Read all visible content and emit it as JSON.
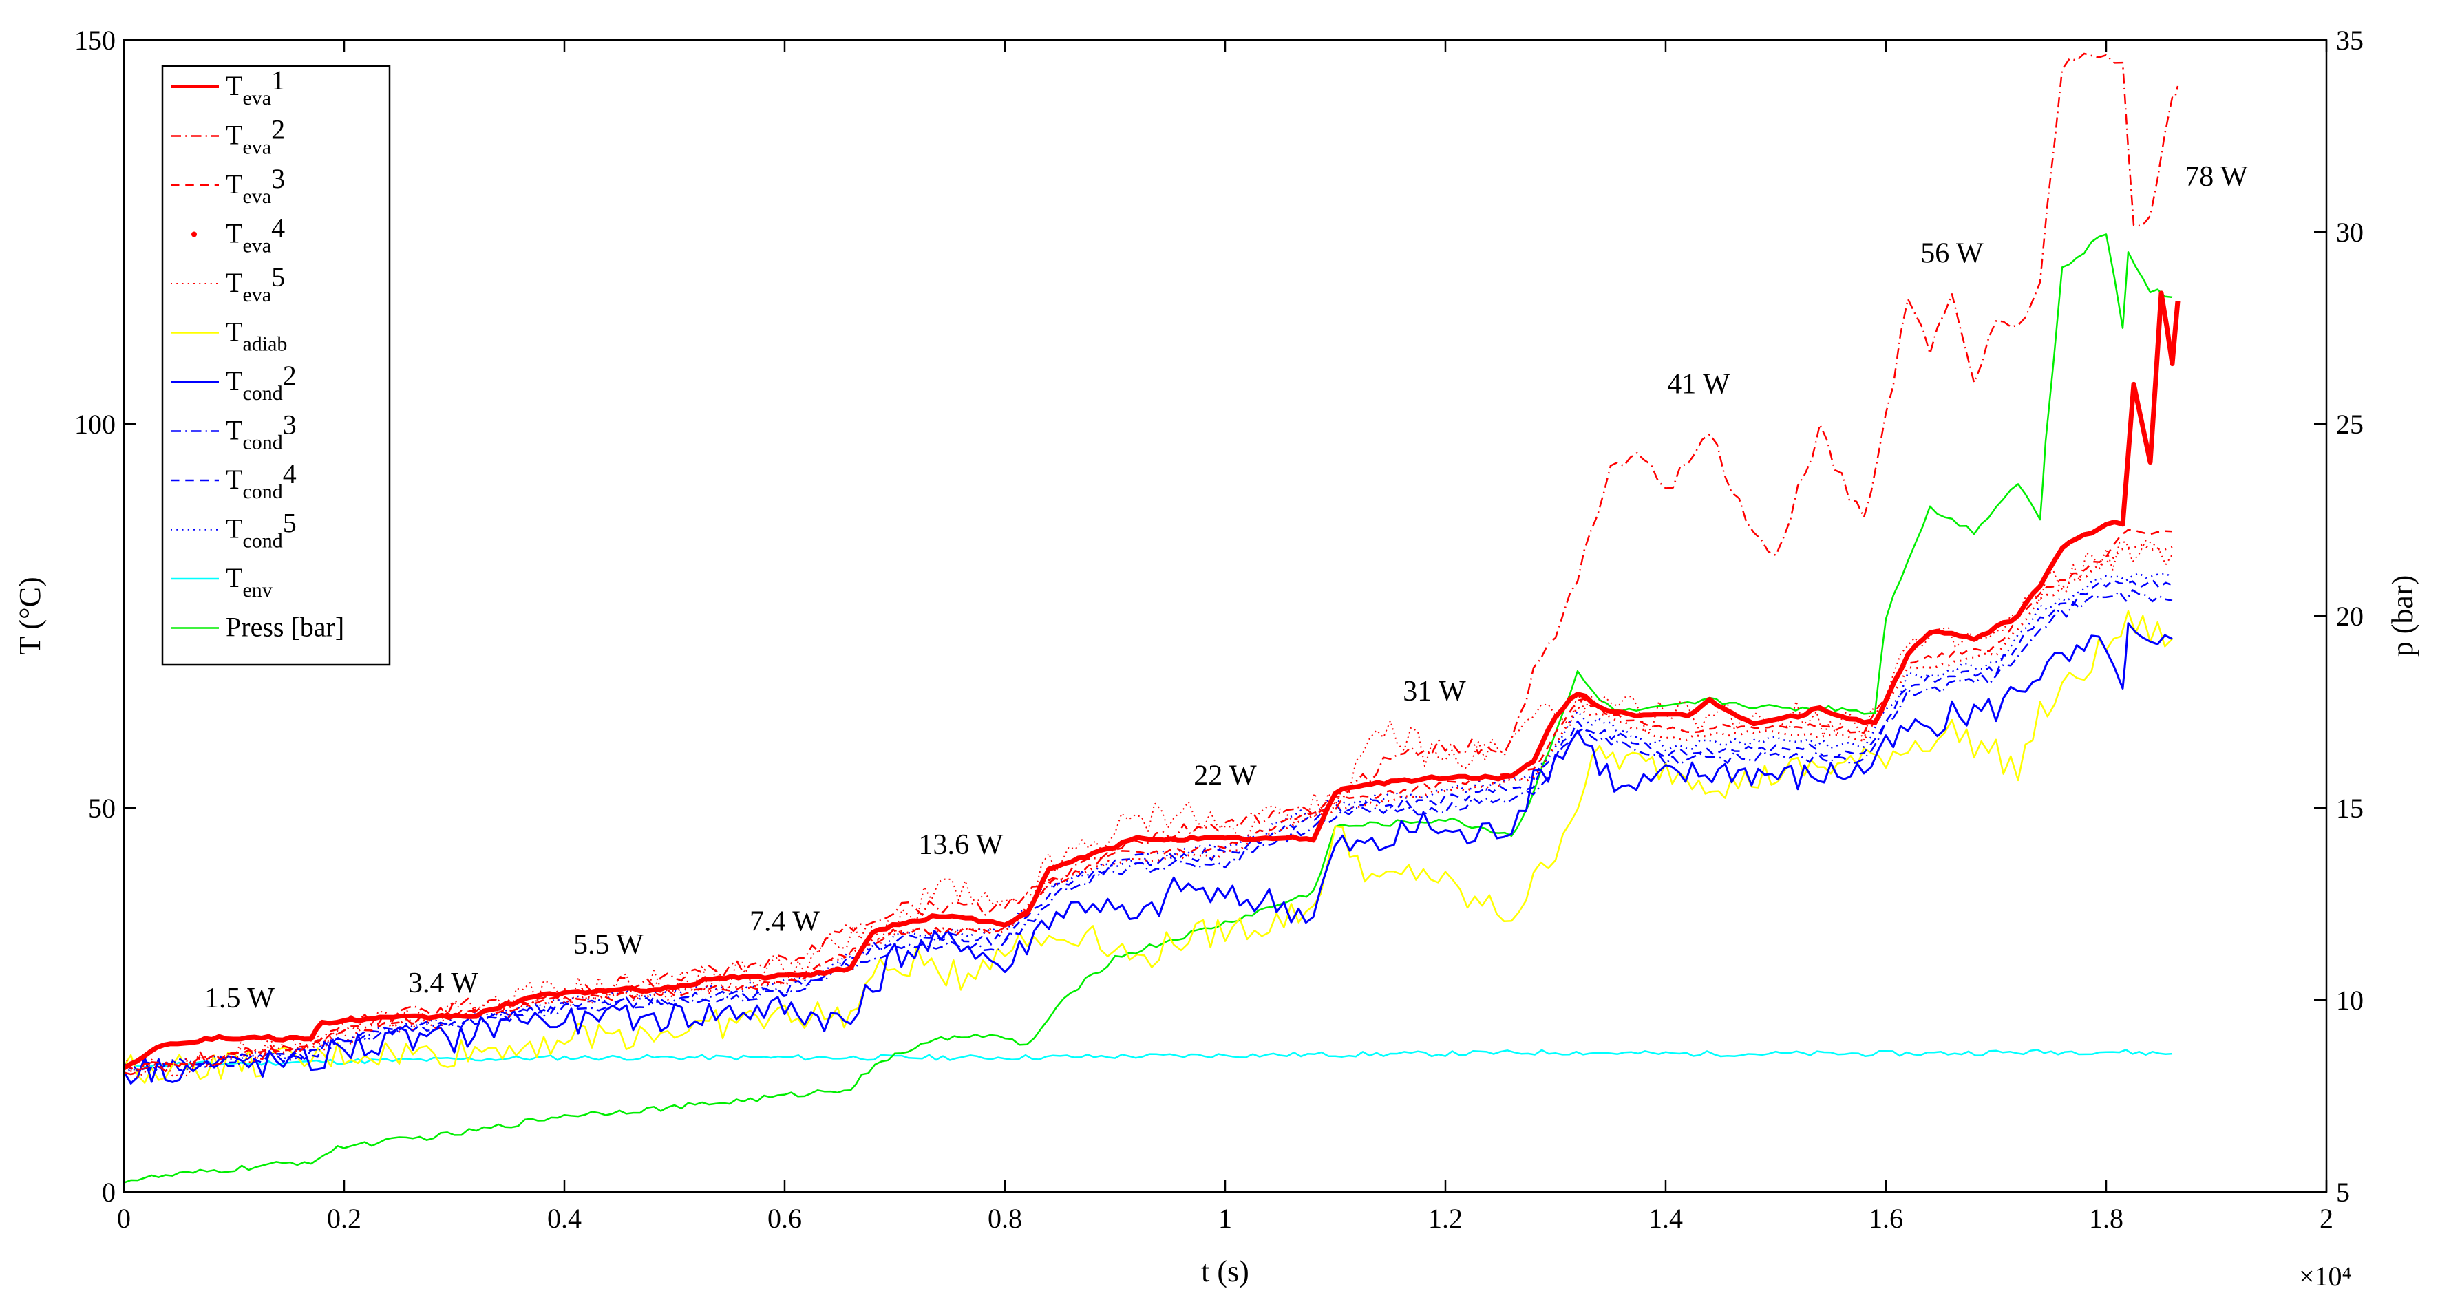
{
  "chart_data": {
    "type": "line",
    "title": "",
    "xlabel": "t (s)",
    "ylabel_left": "T (°C)",
    "ylabel_right": "p (bar)",
    "x_multiplier": "×10⁴",
    "xlim": [
      0,
      2
    ],
    "ylim_left": [
      0,
      150
    ],
    "ylim_right": [
      5,
      35
    ],
    "x_ticks": [
      "0",
      "0.2",
      "0.4",
      "0.6",
      "0.8",
      "1",
      "1.2",
      "1.4",
      "1.6",
      "1.8",
      "2"
    ],
    "y_ticks_left": [
      "0",
      "50",
      "100",
      "150"
    ],
    "y_ticks_right": [
      "5",
      "10",
      "15",
      "20",
      "25",
      "30",
      "35"
    ],
    "grid": false,
    "legend_position": "top-left",
    "annotations": [
      {
        "text": "1.5 W",
        "x": 0.105,
        "y": 24
      },
      {
        "text": "3.4 W",
        "x": 0.29,
        "y": 26
      },
      {
        "text": "5.5 W",
        "x": 0.44,
        "y": 31
      },
      {
        "text": "7.4 W",
        "x": 0.6,
        "y": 34
      },
      {
        "text": "13.6 W",
        "x": 0.76,
        "y": 44
      },
      {
        "text": "22 W",
        "x": 1.0,
        "y": 53
      },
      {
        "text": "31 W",
        "x": 1.19,
        "y": 64
      },
      {
        "text": "41 W",
        "x": 1.43,
        "y": 104
      },
      {
        "text": "56 W",
        "x": 1.66,
        "y": 121
      },
      {
        "text": "78 W",
        "x": 1.9,
        "y": 131
      }
    ],
    "series": [
      {
        "key": "teva1",
        "legend_main": "T",
        "legend_sub": "eva",
        "legend_tail": "1",
        "color": "#ff0000",
        "style": "solid",
        "width": 7,
        "axis": "left",
        "x": [
          0,
          0.03,
          0.08,
          0.17,
          0.18,
          0.22,
          0.32,
          0.36,
          0.4,
          0.5,
          0.54,
          0.6,
          0.66,
          0.68,
          0.74,
          0.8,
          0.82,
          0.84,
          0.88,
          0.92,
          1.0,
          1.08,
          1.1,
          1.12,
          1.2,
          1.26,
          1.28,
          1.3,
          1.32,
          1.34,
          1.38,
          1.42,
          1.44,
          1.48,
          1.52,
          1.54,
          1.58,
          1.59,
          1.62,
          1.64,
          1.68,
          1.72,
          1.74,
          1.76,
          1.8,
          1.815,
          1.825,
          1.84,
          1.85,
          1.86,
          1.865
        ],
        "y": [
          16,
          19,
          20,
          20,
          22,
          22.5,
          23,
          25,
          26,
          26.5,
          28,
          28,
          29,
          34,
          36,
          35,
          36,
          42,
          44,
          46,
          46,
          46,
          52,
          53,
          54,
          54,
          56,
          62,
          65,
          63,
          62,
          62,
          64,
          61,
          62,
          63,
          61,
          61,
          70,
          73,
          72,
          75,
          79,
          84,
          87,
          87,
          105,
          95,
          117,
          108,
          116
        ]
      },
      {
        "key": "teva2",
        "legend_main": "T",
        "legend_sub": "eva",
        "legend_tail": "2",
        "color": "#ff0000",
        "style": "dashdot",
        "width": 2.5,
        "axis": "left",
        "x": [
          0,
          0.17,
          0.2,
          0.4,
          0.6,
          0.7,
          0.8,
          0.9,
          1.0,
          1.1,
          1.15,
          1.2,
          1.26,
          1.28,
          1.3,
          1.32,
          1.35,
          1.38,
          1.4,
          1.44,
          1.48,
          1.5,
          1.54,
          1.58,
          1.6,
          1.62,
          1.64,
          1.66,
          1.68,
          1.7,
          1.72,
          1.74,
          1.76,
          1.8,
          1.815,
          1.825,
          1.84,
          1.86,
          1.865
        ],
        "y": [
          16,
          19,
          22,
          26,
          30,
          37,
          37,
          45,
          48,
          50,
          57,
          58,
          58,
          68,
          72,
          80,
          95,
          96,
          91,
          99,
          85,
          83,
          99,
          87,
          101,
          116,
          110,
          117,
          106,
          113,
          113,
          118,
          147,
          148,
          147,
          125,
          128,
          142,
          144
        ]
      },
      {
        "key": "teva3",
        "legend_main": "T",
        "legend_sub": "eva",
        "legend_tail": "3",
        "color": "#ff0000",
        "style": "dashed",
        "width": 2.5,
        "axis": "left",
        "x": [
          0,
          0.17,
          0.2,
          0.4,
          0.6,
          0.7,
          0.8,
          0.84,
          0.9,
          1.0,
          1.1,
          1.2,
          1.28,
          1.32,
          1.4,
          1.5,
          1.58,
          1.62,
          1.7,
          1.74,
          1.8,
          1.82,
          1.86
        ],
        "y": [
          16,
          19,
          21,
          25,
          27,
          34,
          34,
          40,
          44,
          45,
          51,
          53,
          55,
          64,
          60,
          61,
          60,
          69,
          71,
          78,
          83,
          86,
          86
        ]
      },
      {
        "key": "teva4",
        "legend_main": "T",
        "legend_sub": "eva",
        "legend_tail": "4",
        "color": "#ff0000",
        "style": "dotted",
        "width": 3,
        "axis": "left",
        "x": [
          0,
          0.17,
          0.2,
          0.4,
          0.6,
          0.7,
          0.8,
          0.84,
          0.9,
          1.0,
          1.1,
          1.2,
          1.28,
          1.32,
          1.4,
          1.5,
          1.58,
          1.62,
          1.7,
          1.74,
          1.8,
          1.82,
          1.86
        ],
        "y": [
          16,
          19,
          21,
          25,
          27,
          34,
          34,
          40,
          43,
          44,
          50,
          52,
          54,
          63,
          59,
          60,
          59,
          68,
          70,
          77,
          82,
          84,
          84
        ]
      },
      {
        "key": "teva5",
        "legend_main": "T",
        "legend_sub": "eva",
        "legend_tail": "5",
        "color": "#ff0000",
        "style": "dotted",
        "width": 2,
        "axis": "left",
        "x": [
          0,
          0.17,
          0.2,
          0.4,
          0.5,
          0.6,
          0.7,
          0.74,
          0.8,
          0.84,
          0.9,
          0.96,
          1.0,
          1.1,
          1.15,
          1.2,
          1.26,
          1.28,
          1.32,
          1.4,
          1.5,
          1.58,
          1.62,
          1.7,
          1.74,
          1.8,
          1.86
        ],
        "y": [
          16,
          19,
          21,
          26,
          27,
          29,
          35,
          40,
          36,
          42,
          47,
          50,
          47,
          52,
          60,
          56,
          58,
          62,
          63,
          62,
          62,
          61,
          71,
          72,
          78,
          83,
          83
        ]
      },
      {
        "key": "tadiab",
        "legend_main": "T",
        "legend_sub": "adiab",
        "legend_tail": "",
        "color": "#ffff00",
        "style": "solid",
        "width": 2.5,
        "axis": "left",
        "x": [
          0,
          0.17,
          0.2,
          0.3,
          0.4,
          0.5,
          0.6,
          0.66,
          0.68,
          0.72,
          0.76,
          0.8,
          0.84,
          0.88,
          0.92,
          0.96,
          1.0,
          1.04,
          1.08,
          1.1,
          1.14,
          1.18,
          1.22,
          1.26,
          1.28,
          1.3,
          1.34,
          1.4,
          1.46,
          1.52,
          1.58,
          1.62,
          1.66,
          1.7,
          1.72,
          1.74,
          1.78,
          1.82,
          1.86
        ],
        "y": [
          16,
          17,
          18,
          18,
          20,
          21,
          23,
          23,
          28,
          30,
          28,
          32,
          33,
          34,
          30,
          33,
          34,
          35,
          37,
          47,
          40,
          42,
          38,
          36,
          40,
          45,
          57,
          55,
          53,
          55,
          56,
          58,
          60,
          57,
          55,
          62,
          68,
          74,
          72
        ]
      },
      {
        "key": "tcond2",
        "legend_main": "T",
        "legend_sub": "cond",
        "legend_tail": "2",
        "color": "#0000ff",
        "style": "solid",
        "width": 3,
        "axis": "left",
        "x": [
          0,
          0.17,
          0.2,
          0.3,
          0.36,
          0.4,
          0.5,
          0.6,
          0.66,
          0.7,
          0.76,
          0.8,
          0.84,
          0.88,
          0.92,
          0.96,
          1.0,
          1.04,
          1.08,
          1.1,
          1.14,
          1.18,
          1.22,
          1.26,
          1.28,
          1.32,
          1.36,
          1.4,
          1.46,
          1.52,
          1.58,
          1.62,
          1.66,
          1.7,
          1.74,
          1.78,
          1.8,
          1.815,
          1.82,
          1.84,
          1.86
        ],
        "y": [
          16,
          17,
          19,
          20,
          23,
          22,
          23,
          24,
          22,
          31,
          33,
          29,
          36,
          38,
          35,
          40,
          38,
          38,
          36,
          45,
          45,
          48,
          46,
          48,
          53,
          60,
          52,
          54,
          55,
          54,
          55,
          60,
          62,
          63,
          68,
          70,
          72,
          64,
          73,
          70,
          72
        ]
      },
      {
        "key": "tcond3",
        "legend_main": "T",
        "legend_sub": "cond",
        "legend_tail": "3",
        "color": "#0000ff",
        "style": "dashdot",
        "width": 2.5,
        "axis": "left",
        "x": [
          0,
          0.17,
          0.2,
          0.4,
          0.6,
          0.7,
          0.8,
          0.84,
          0.9,
          1.0,
          1.1,
          1.2,
          1.28,
          1.32,
          1.4,
          1.5,
          1.58,
          1.62,
          1.7,
          1.74,
          1.8,
          1.86
        ],
        "y": [
          16,
          18,
          20,
          24,
          26,
          32,
          32,
          38,
          42,
          43,
          49,
          50,
          52,
          60,
          56,
          57,
          56,
          65,
          67,
          74,
          78,
          77
        ]
      },
      {
        "key": "tcond4",
        "legend_main": "T",
        "legend_sub": "cond",
        "legend_tail": "4",
        "color": "#0000ff",
        "style": "dashed",
        "width": 2.5,
        "axis": "left",
        "x": [
          0,
          0.17,
          0.2,
          0.4,
          0.6,
          0.7,
          0.8,
          0.84,
          0.9,
          1.0,
          1.1,
          1.2,
          1.28,
          1.32,
          1.4,
          1.5,
          1.58,
          1.62,
          1.7,
          1.74,
          1.8,
          1.86
        ],
        "y": [
          16,
          18,
          20,
          24,
          26,
          33,
          33,
          39,
          43,
          44,
          50,
          51,
          53,
          61,
          57,
          58,
          57,
          66,
          68,
          75,
          79,
          79
        ]
      },
      {
        "key": "tcond5",
        "legend_main": "T",
        "legend_sub": "cond",
        "legend_tail": "5",
        "color": "#0000ff",
        "style": "dotted",
        "width": 2.5,
        "axis": "left",
        "x": [
          0,
          0.17,
          0.2,
          0.4,
          0.6,
          0.7,
          0.8,
          0.84,
          0.9,
          1.0,
          1.1,
          1.2,
          1.28,
          1.32,
          1.4,
          1.5,
          1.58,
          1.62,
          1.7,
          1.74,
          1.8,
          1.86
        ],
        "y": [
          16,
          18,
          20,
          25,
          27,
          33,
          34,
          40,
          43,
          45,
          51,
          52,
          54,
          62,
          58,
          59,
          58,
          67,
          69,
          76,
          80,
          80
        ]
      },
      {
        "key": "tenv",
        "legend_main": "T",
        "legend_sub": "env",
        "legend_tail": "",
        "color": "#00ffff",
        "style": "solid",
        "width": 2.5,
        "axis": "left",
        "x": [
          0,
          0.2,
          0.4,
          0.6,
          0.8,
          1.0,
          1.2,
          1.3,
          1.4,
          1.6,
          1.8,
          1.86
        ],
        "y": [
          16.5,
          17,
          17.5,
          17.5,
          17.5,
          17.8,
          18,
          18.2,
          18,
          18,
          18.3,
          18
        ]
      },
      {
        "key": "press",
        "legend_main": "Press [bar]",
        "legend_sub": "",
        "legend_tail": "",
        "color": "#00ee00",
        "style": "solid",
        "width": 2.5,
        "axis": "right",
        "x": [
          0,
          0.17,
          0.2,
          0.3,
          0.34,
          0.4,
          0.5,
          0.6,
          0.66,
          0.67,
          0.7,
          0.76,
          0.8,
          0.82,
          0.86,
          0.9,
          1.0,
          1.08,
          1.1,
          1.2,
          1.26,
          1.27,
          1.3,
          1.32,
          1.34,
          1.36,
          1.4,
          1.44,
          1.5,
          1.56,
          1.58,
          1.59,
          1.6,
          1.62,
          1.64,
          1.68,
          1.72,
          1.74,
          1.745,
          1.76,
          1.8,
          1.815,
          1.82,
          1.84,
          1.86
        ],
        "y": [
          5.3,
          5.8,
          6.2,
          6.5,
          6.7,
          7.0,
          7.2,
          7.5,
          7.7,
          8,
          8.6,
          9.1,
          9.0,
          8.8,
          10.2,
          11.1,
          12,
          12.8,
          14.5,
          14.7,
          14.3,
          14.7,
          17.0,
          18.5,
          17.8,
          17.5,
          17.6,
          17.8,
          17.6,
          17.6,
          17.5,
          17.5,
          20.0,
          21.5,
          22.8,
          22.2,
          23.5,
          22.5,
          24.5,
          29.0,
          30.0,
          27.5,
          29.5,
          28.5,
          28.3
        ]
      }
    ]
  }
}
